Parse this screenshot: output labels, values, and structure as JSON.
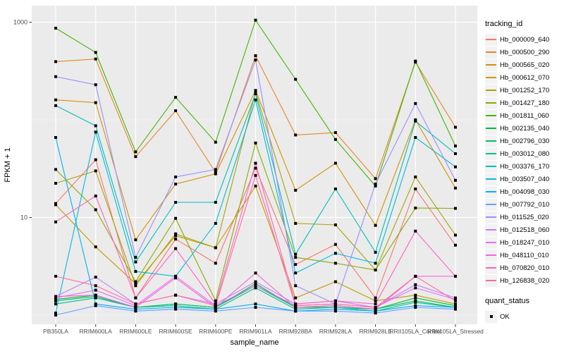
{
  "chart_data": {
    "type": "line",
    "title": "",
    "xlabel": "sample_name",
    "ylabel": "FPKM + 1",
    "y_scale": "log10",
    "y_axis_ticks": [
      1000,
      10
    ],
    "y_minor_gridlines": [
      100,
      1
    ],
    "ylim": [
      0.81,
      1480
    ],
    "grid": "on",
    "legend_position": "right",
    "legend_title": "tracking_id",
    "quant_legend": {
      "title": "quant_status",
      "items": [
        "OK"
      ]
    },
    "panel_bg": "#EBEBEB",
    "gridline_color": "#FFFFFF",
    "point_color": "#000000",
    "tick_label_color": "#4D4D4D",
    "categories": [
      "PB350LA",
      "RRIM600LA",
      "RRIM600LE",
      "RRIM600SE",
      "RRIM600PE",
      "RRIM901LA",
      "RRIM928BA",
      "RRIM928LA",
      "RRIM928LE",
      "RRII105LA_Control",
      "RRII105LA_Stressed"
    ],
    "series": [
      {
        "name": "Hb_000009_640",
        "color": "#F8766D",
        "values": [
          13.9,
          39,
          1.5,
          6.0,
          3.4,
          32,
          3.3,
          5.3,
          1.5,
          19.6,
          5.2
        ]
      },
      {
        "name": "Hb_000500_290",
        "color": "#E88526",
        "values": [
          395,
          420,
          42,
          124,
          29,
          454,
          70,
          74,
          25,
          390,
          84
        ]
      },
      {
        "name": "Hb_000565_020",
        "color": "#D39200",
        "values": [
          160,
          150,
          5.9,
          22,
          28,
          200,
          19,
          36,
          8.3,
          100,
          20
        ]
      },
      {
        "name": "Hb_000612_070",
        "color": "#C39B00",
        "values": [
          13.5,
          5.0,
          2.1,
          6.5,
          4.9,
          21,
          1.5,
          2.2,
          1.4,
          1.6,
          1.3
        ]
      },
      {
        "name": "Hb_001252_170",
        "color": "#A9A400",
        "values": [
          22.4,
          30,
          2.0,
          6.8,
          4.9,
          193,
          8.7,
          8.4,
          2.9,
          26,
          6.6
        ]
      },
      {
        "name": "Hb_001427_180",
        "color": "#89AC00",
        "values": [
          31,
          12,
          2.2,
          9.8,
          1.4,
          58,
          3.9,
          3.4,
          2.9,
          12.5,
          12.4
        ]
      },
      {
        "name": "Hb_001811_060",
        "color": "#45B500",
        "values": [
          870,
          490,
          47,
          170,
          59,
          1050,
          260,
          63,
          21,
          400,
          54
        ]
      },
      {
        "name": "Hb_002135_040",
        "color": "#00B934",
        "values": [
          1.45,
          1.6,
          1.2,
          1.3,
          1.2,
          2.1,
          1.2,
          1.25,
          1.15,
          1.5,
          1.25
        ]
      },
      {
        "name": "Hb_002796_030",
        "color": "#00BD68",
        "values": [
          1.4,
          1.55,
          1.2,
          1.3,
          1.2,
          2.0,
          1.2,
          1.2,
          1.15,
          1.4,
          1.2
        ]
      },
      {
        "name": "Hb_003012_080",
        "color": "#00BF92",
        "values": [
          1.3,
          1.5,
          1.2,
          1.25,
          1.15,
          1.9,
          1.15,
          1.2,
          1.1,
          1.35,
          1.2
        ]
      },
      {
        "name": "Hb_003376_170",
        "color": "#00BFBA",
        "values": [
          140,
          87,
          3.5,
          14.3,
          14.3,
          185,
          4.2,
          19.6,
          4.4,
          97,
          45
        ]
      },
      {
        "name": "Hb_003507_040",
        "color": "#00BBDB",
        "values": [
          1.05,
          75,
          2.8,
          2.5,
          8.7,
          160,
          2.7,
          4.3,
          3.4,
          66,
          33
        ]
      },
      {
        "name": "Hb_004098_030",
        "color": "#00B3F2",
        "values": [
          66,
          1.3,
          1.15,
          1.2,
          1.15,
          1.3,
          1.1,
          1.15,
          1.1,
          1.25,
          1.2
        ]
      },
      {
        "name": "Hb_007792_010",
        "color": "#5DA2FF",
        "values": [
          1.0,
          1.25,
          1.1,
          1.15,
          1.1,
          1.2,
          1.1,
          1.1,
          1.05,
          1.2,
          1.15
        ]
      },
      {
        "name": "Hb_011525_020",
        "color": "#9B8EFF",
        "values": [
          277,
          229,
          3.9,
          26,
          31,
          410,
          2.0,
          1.3,
          22,
          147,
          24
        ]
      },
      {
        "name": "Hb_012518_060",
        "color": "#C77CFF",
        "values": [
          1.55,
          2.45,
          1.3,
          1.6,
          1.3,
          2.2,
          1.3,
          1.4,
          1.2,
          2.05,
          1.5
        ]
      },
      {
        "name": "Hb_018247_010",
        "color": "#E56DF5",
        "values": [
          1.5,
          1.8,
          1.25,
          2.5,
          1.25,
          2.0,
          1.25,
          1.3,
          1.2,
          1.9,
          1.45
        ]
      },
      {
        "name": "Hb_048110_010",
        "color": "#F863E0",
        "values": [
          1.55,
          1.6,
          1.2,
          2.4,
          1.2,
          2.7,
          1.2,
          1.25,
          1.15,
          2.5,
          2.5
        ]
      },
      {
        "name": "Hb_070820_010",
        "color": "#FF62C1",
        "values": [
          9.0,
          16.6,
          1.5,
          4.8,
          1.3,
          36,
          1.3,
          1.4,
          1.3,
          7.25,
          2.5
        ]
      },
      {
        "name": "Hb_126838_020",
        "color": "#FF6B9D",
        "values": [
          2.5,
          2.0,
          1.3,
          1.6,
          1.25,
          27,
          1.25,
          1.3,
          1.2,
          2.5,
          1.4
        ]
      }
    ]
  }
}
